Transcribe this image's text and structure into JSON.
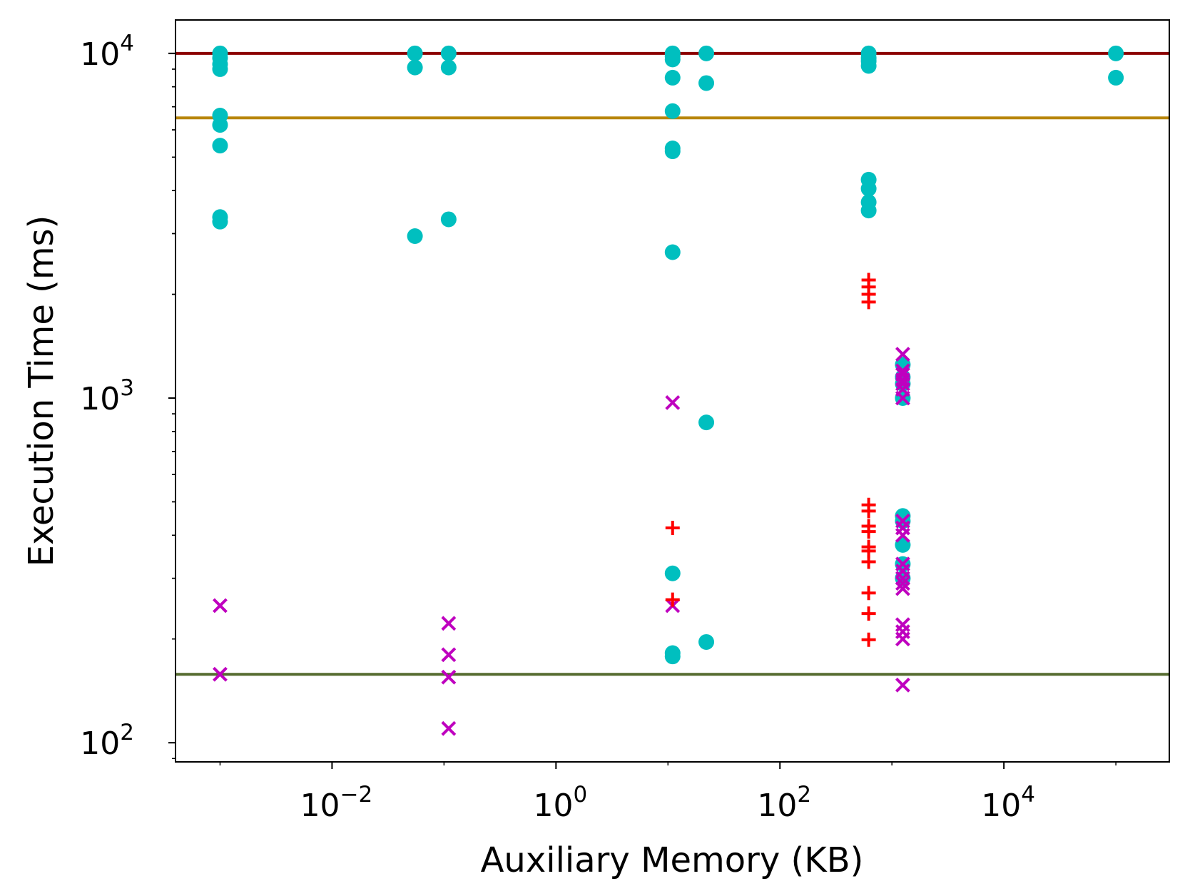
{
  "chart_data": {
    "type": "scatter",
    "title": "",
    "xlabel": "Auxiliary Memory (KB)",
    "ylabel": "Execution Time (ms)",
    "xscale": "log",
    "yscale": "log",
    "xlim": [
      0.0004,
      300000
    ],
    "ylim": [
      88,
      12500
    ],
    "grid": false,
    "x_ticks": [
      {
        "base": "10",
        "exp": "−2",
        "value": 0.01
      },
      {
        "base": "10",
        "exp": "0",
        "value": 1
      },
      {
        "base": "10",
        "exp": "2",
        "value": 100
      },
      {
        "base": "10",
        "exp": "4",
        "value": 10000
      }
    ],
    "y_ticks": [
      {
        "base": "10",
        "exp": "2",
        "value": 100
      },
      {
        "base": "10",
        "exp": "3",
        "value": 1000
      },
      {
        "base": "10",
        "exp": "4",
        "value": 10000
      }
    ],
    "hlines": [
      {
        "y": 10000,
        "color": "#8b0000"
      },
      {
        "y": 6500,
        "color": "#b8860b"
      },
      {
        "y": 158,
        "color": "#556b2f"
      }
    ],
    "series": [
      {
        "name": "circle",
        "marker": "circle",
        "color": "#00bfbf",
        "points": [
          [
            0.001,
            10000
          ],
          [
            0.001,
            9700
          ],
          [
            0.001,
            9300
          ],
          [
            0.001,
            9000
          ],
          [
            0.001,
            6600
          ],
          [
            0.001,
            6200
          ],
          [
            0.001,
            5400
          ],
          [
            0.001,
            3350
          ],
          [
            0.001,
            3250
          ],
          [
            0.055,
            10000
          ],
          [
            0.055,
            9100
          ],
          [
            0.055,
            2950
          ],
          [
            0.11,
            10000
          ],
          [
            0.11,
            9100
          ],
          [
            0.11,
            3300
          ],
          [
            11,
            10000
          ],
          [
            11,
            9800
          ],
          [
            11,
            9600
          ],
          [
            11,
            8500
          ],
          [
            11,
            6800
          ],
          [
            11,
            5300
          ],
          [
            11,
            5200
          ],
          [
            11,
            2650
          ],
          [
            11,
            310
          ],
          [
            11,
            182
          ],
          [
            11,
            178
          ],
          [
            22,
            10000
          ],
          [
            22,
            8200
          ],
          [
            22,
            850
          ],
          [
            22,
            196
          ],
          [
            620,
            10000
          ],
          [
            620,
            9700
          ],
          [
            620,
            9500
          ],
          [
            620,
            9200
          ],
          [
            620,
            4300
          ],
          [
            620,
            4050
          ],
          [
            620,
            3700
          ],
          [
            620,
            3500
          ],
          [
            1250,
            1250
          ],
          [
            1250,
            1150
          ],
          [
            1250,
            1100
          ],
          [
            1250,
            1000
          ],
          [
            1250,
            455
          ],
          [
            1250,
            440
          ],
          [
            1250,
            375
          ],
          [
            1250,
            330
          ],
          [
            1250,
            300
          ],
          [
            100000,
            10000
          ],
          [
            100000,
            8500
          ]
        ]
      },
      {
        "name": "x",
        "marker": "x",
        "color": "#bf00bf",
        "points": [
          [
            0.001,
            250
          ],
          [
            0.001,
            158
          ],
          [
            0.11,
            222
          ],
          [
            0.11,
            180
          ],
          [
            0.11,
            155
          ],
          [
            0.11,
            110
          ],
          [
            11,
            970
          ],
          [
            11,
            250
          ],
          [
            1250,
            1340
          ],
          [
            1250,
            1200
          ],
          [
            1250,
            1170
          ],
          [
            1250,
            1130
          ],
          [
            1250,
            1100
          ],
          [
            1250,
            1060
          ],
          [
            1250,
            1000
          ],
          [
            1250,
            440
          ],
          [
            1250,
            420
          ],
          [
            1250,
            400
          ],
          [
            1250,
            330
          ],
          [
            1250,
            315
          ],
          [
            1250,
            300
          ],
          [
            1250,
            290
          ],
          [
            1250,
            280
          ],
          [
            1250,
            220
          ],
          [
            1250,
            210
          ],
          [
            1250,
            200
          ],
          [
            1250,
            147
          ]
        ]
      },
      {
        "name": "plus",
        "marker": "plus",
        "color": "#ff0000",
        "points": [
          [
            11,
            420
          ],
          [
            11,
            260
          ],
          [
            620,
            2200
          ],
          [
            620,
            2100
          ],
          [
            620,
            2000
          ],
          [
            620,
            1900
          ],
          [
            620,
            490
          ],
          [
            620,
            470
          ],
          [
            620,
            425
          ],
          [
            620,
            410
          ],
          [
            620,
            370
          ],
          [
            620,
            360
          ],
          [
            620,
            335
          ],
          [
            620,
            272
          ],
          [
            620,
            237
          ],
          [
            620,
            199
          ]
        ]
      }
    ]
  }
}
